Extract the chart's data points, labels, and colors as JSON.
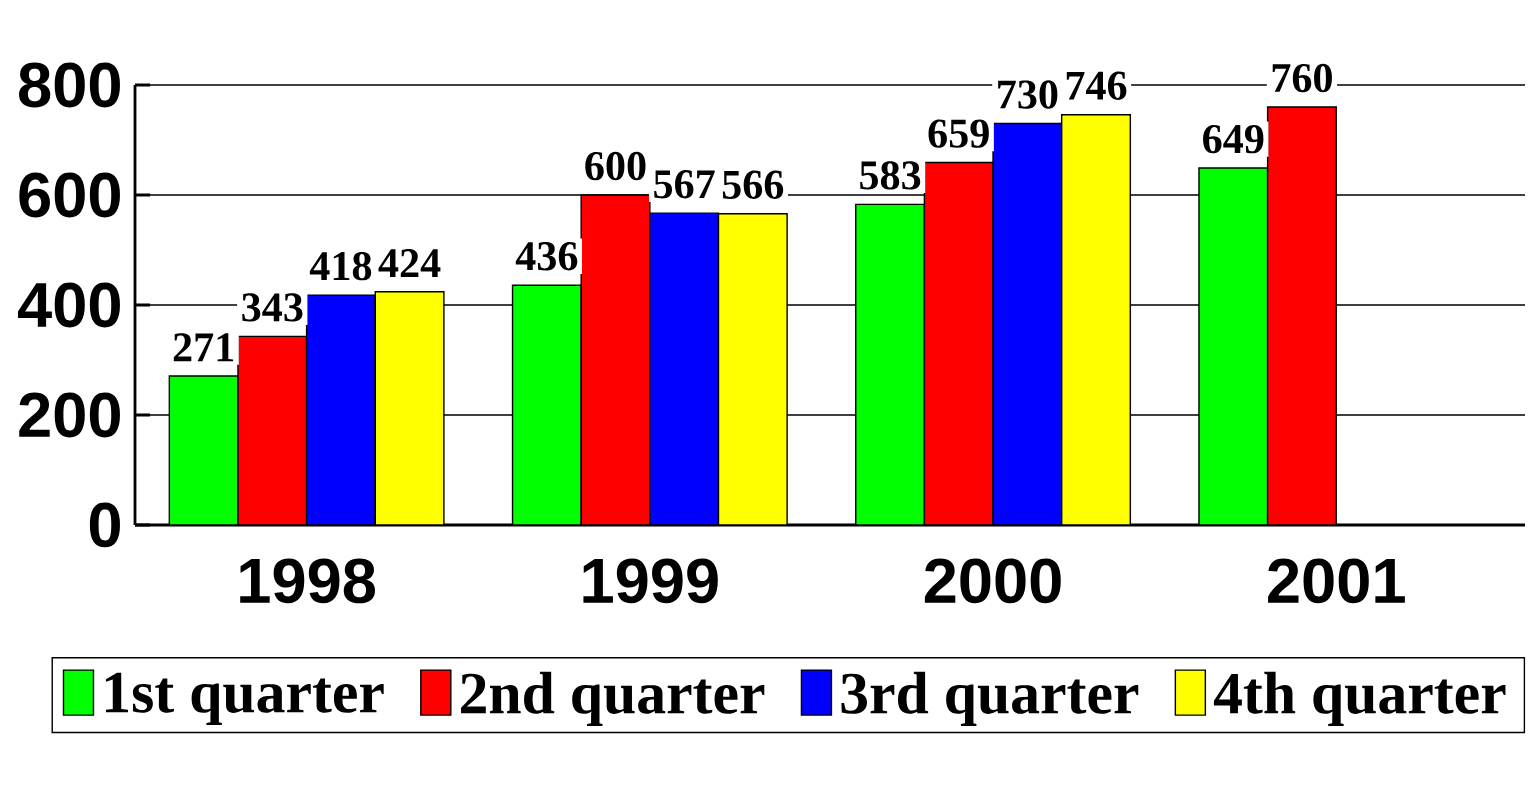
{
  "chart_data": {
    "type": "bar",
    "categories": [
      "1998",
      "1999",
      "2000",
      "2001"
    ],
    "series": [
      {
        "name": "1st quarter",
        "color": "#00ff00",
        "values": [
          271,
          436,
          583,
          649
        ]
      },
      {
        "name": "2nd quarter",
        "color": "#ff0000",
        "values": [
          343,
          600,
          659,
          760
        ]
      },
      {
        "name": "3rd quarter",
        "color": "#0000ff",
        "values": [
          418,
          567,
          730,
          null
        ]
      },
      {
        "name": "4th quarter",
        "color": "#ffff00",
        "values": [
          424,
          566,
          746,
          null
        ]
      }
    ],
    "ylim": [
      0,
      800
    ],
    "yticks": [
      0,
      200,
      400,
      600,
      800
    ],
    "grid": "y",
    "legend": "bottom",
    "data_labels": true
  }
}
